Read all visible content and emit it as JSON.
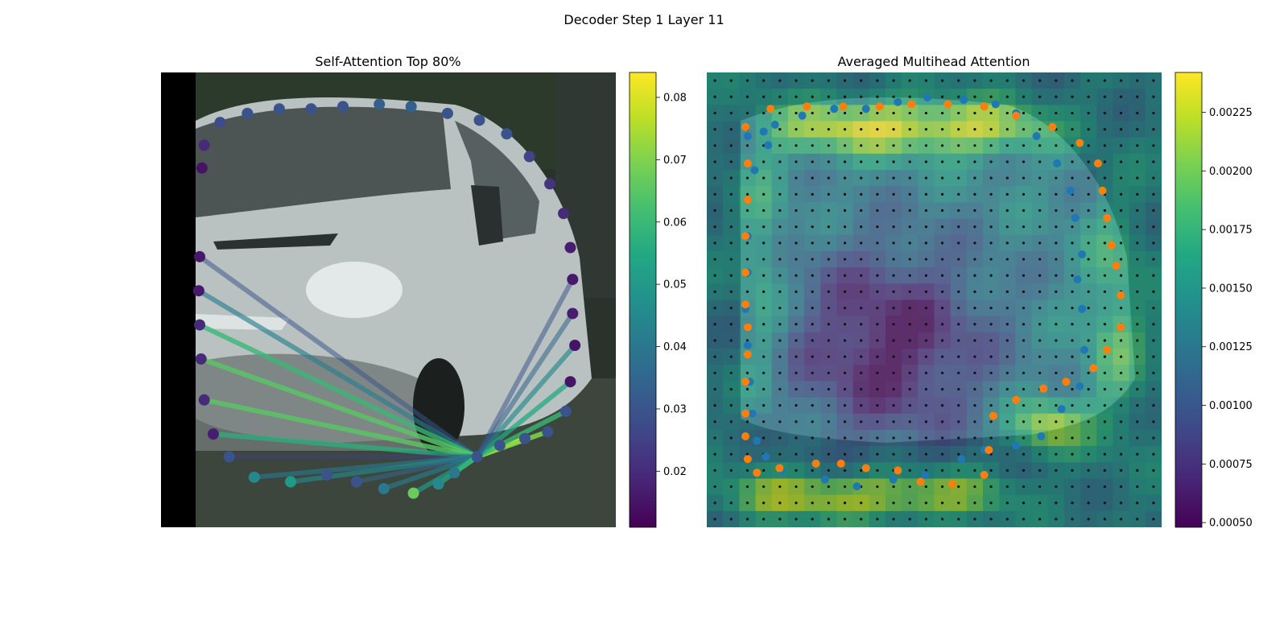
{
  "figure": {
    "suptitle": "Decoder Step 1 Layer 11"
  },
  "colors": {
    "viridis": [
      "#440154",
      "#482475",
      "#414487",
      "#355f8d",
      "#2a788e",
      "#21918c",
      "#22a884",
      "#44bf70",
      "#7ad151",
      "#bddf26",
      "#fde725"
    ],
    "points_blue": "#1f77b4",
    "points_orange": "#ff7f0e",
    "grid_dots": "#111111"
  },
  "chart_data": [
    {
      "type": "scatter",
      "title": "Self-Attention Top 80%",
      "description_source": "polygon vertices colored by attention weight; lines from query vertex to top-80% attended vertices",
      "colorbar": {
        "min": 0.011,
        "max": 0.084,
        "ticks": [
          "0.02",
          "0.03",
          "0.04",
          "0.05",
          "0.06",
          "0.07",
          "0.08"
        ],
        "tick_values": [
          0.02,
          0.03,
          0.04,
          0.05,
          0.06,
          0.07,
          0.08
        ]
      },
      "query_vertex": 24,
      "vertices": [
        [
          0.09,
          0.21,
          0.015
        ],
        [
          0.095,
          0.16,
          0.02
        ],
        [
          0.13,
          0.11,
          0.028
        ],
        [
          0.19,
          0.09,
          0.03
        ],
        [
          0.26,
          0.08,
          0.03
        ],
        [
          0.33,
          0.08,
          0.029
        ],
        [
          0.4,
          0.075,
          0.03
        ],
        [
          0.48,
          0.07,
          0.033
        ],
        [
          0.55,
          0.075,
          0.033
        ],
        [
          0.63,
          0.09,
          0.03
        ],
        [
          0.7,
          0.105,
          0.03
        ],
        [
          0.76,
          0.135,
          0.03
        ],
        [
          0.81,
          0.185,
          0.026
        ],
        [
          0.855,
          0.245,
          0.022
        ],
        [
          0.885,
          0.31,
          0.02
        ],
        [
          0.9,
          0.385,
          0.017
        ],
        [
          0.905,
          0.455,
          0.016
        ],
        [
          0.905,
          0.53,
          0.017
        ],
        [
          0.91,
          0.6,
          0.015
        ],
        [
          0.9,
          0.68,
          0.015
        ],
        [
          0.89,
          0.745,
          0.03
        ],
        [
          0.85,
          0.79,
          0.03
        ],
        [
          0.8,
          0.805,
          0.03
        ],
        [
          0.745,
          0.82,
          0.03
        ],
        [
          0.695,
          0.845,
          0.03
        ],
        [
          0.645,
          0.88,
          0.04
        ],
        [
          0.61,
          0.905,
          0.045
        ],
        [
          0.555,
          0.925,
          0.067
        ],
        [
          0.49,
          0.915,
          0.04
        ],
        [
          0.43,
          0.9,
          0.03
        ],
        [
          0.365,
          0.885,
          0.03
        ],
        [
          0.285,
          0.9,
          0.05
        ],
        [
          0.205,
          0.89,
          0.045
        ],
        [
          0.15,
          0.845,
          0.03
        ],
        [
          0.115,
          0.795,
          0.017
        ],
        [
          0.095,
          0.72,
          0.02
        ],
        [
          0.088,
          0.63,
          0.02
        ],
        [
          0.085,
          0.555,
          0.02
        ],
        [
          0.083,
          0.48,
          0.016
        ],
        [
          0.085,
          0.405,
          0.016
        ]
      ],
      "lines": [
        [
          39,
          0.03
        ],
        [
          38,
          0.042
        ],
        [
          37,
          0.06
        ],
        [
          36,
          0.065
        ],
        [
          35,
          0.065
        ],
        [
          34,
          0.057
        ],
        [
          33,
          0.025
        ],
        [
          32,
          0.04
        ],
        [
          31,
          0.045
        ],
        [
          29,
          0.035
        ],
        [
          28,
          0.042
        ],
        [
          27,
          0.05
        ],
        [
          26,
          0.055
        ],
        [
          25,
          0.06
        ],
        [
          23,
          0.08
        ],
        [
          22,
          0.083
        ],
        [
          21,
          0.07
        ],
        [
          20,
          0.06
        ],
        [
          19,
          0.055
        ],
        [
          18,
          0.045
        ],
        [
          17,
          0.035
        ],
        [
          16,
          0.03
        ]
      ]
    },
    {
      "type": "heatmap",
      "title": "Averaged Multihead Attention",
      "colorbar": {
        "min": 0.00048,
        "max": 0.00242,
        "ticks": [
          "0.00050",
          "0.00075",
          "0.00100",
          "0.00125",
          "0.00150",
          "0.00175",
          "0.00200",
          "0.00225"
        ],
        "tick_values": [
          0.0005,
          0.00075,
          0.001,
          0.00125,
          0.0015,
          0.00175,
          0.002,
          0.00225
        ]
      },
      "grid": {
        "rows": 28,
        "cols": 28
      },
      "series": [
        {
          "color_key": "points_blue",
          "points": [
            [
              0.09,
              0.14
            ],
            [
              0.135,
              0.16
            ],
            [
              0.105,
              0.215
            ],
            [
              0.09,
              0.28
            ],
            [
              0.09,
              0.36
            ],
            [
              0.09,
              0.44
            ],
            [
              0.085,
              0.52
            ],
            [
              0.09,
              0.6
            ],
            [
              0.095,
              0.68
            ],
            [
              0.1,
              0.75
            ],
            [
              0.11,
              0.81
            ],
            [
              0.13,
              0.845
            ],
            [
              0.165,
              0.875
            ],
            [
              0.26,
              0.895
            ],
            [
              0.33,
              0.91
            ],
            [
              0.41,
              0.895
            ],
            [
              0.48,
              0.885
            ],
            [
              0.56,
              0.85
            ],
            [
              0.61,
              0.83
            ],
            [
              0.68,
              0.82
            ],
            [
              0.735,
              0.8
            ],
            [
              0.78,
              0.74
            ],
            [
              0.82,
              0.69
            ],
            [
              0.83,
              0.61
            ],
            [
              0.825,
              0.52
            ],
            [
              0.815,
              0.455
            ],
            [
              0.825,
              0.4
            ],
            [
              0.81,
              0.32
            ],
            [
              0.8,
              0.26
            ],
            [
              0.77,
              0.2
            ],
            [
              0.725,
              0.14
            ],
            [
              0.68,
              0.09
            ],
            [
              0.635,
              0.07
            ],
            [
              0.565,
              0.06
            ],
            [
              0.485,
              0.055
            ],
            [
              0.42,
              0.065
            ],
            [
              0.35,
              0.08
            ],
            [
              0.28,
              0.08
            ],
            [
              0.21,
              0.095
            ],
            [
              0.15,
              0.115
            ],
            [
              0.125,
              0.13
            ]
          ]
        },
        {
          "color_key": "points_orange",
          "points": [
            [
              0.14,
              0.08
            ],
            [
              0.22,
              0.075
            ],
            [
              0.3,
              0.075
            ],
            [
              0.38,
              0.075
            ],
            [
              0.45,
              0.07
            ],
            [
              0.53,
              0.07
            ],
            [
              0.61,
              0.075
            ],
            [
              0.68,
              0.095
            ],
            [
              0.76,
              0.12
            ],
            [
              0.82,
              0.155
            ],
            [
              0.86,
              0.2
            ],
            [
              0.87,
              0.26
            ],
            [
              0.88,
              0.32
            ],
            [
              0.89,
              0.38
            ],
            [
              0.9,
              0.425
            ],
            [
              0.91,
              0.49
            ],
            [
              0.91,
              0.56
            ],
            [
              0.88,
              0.61
            ],
            [
              0.85,
              0.65
            ],
            [
              0.79,
              0.68
            ],
            [
              0.74,
              0.695
            ],
            [
              0.68,
              0.72
            ],
            [
              0.63,
              0.755
            ],
            [
              0.62,
              0.83
            ],
            [
              0.61,
              0.885
            ],
            [
              0.54,
              0.905
            ],
            [
              0.47,
              0.9
            ],
            [
              0.42,
              0.875
            ],
            [
              0.35,
              0.87
            ],
            [
              0.295,
              0.86
            ],
            [
              0.24,
              0.86
            ],
            [
              0.16,
              0.87
            ],
            [
              0.11,
              0.88
            ],
            [
              0.09,
              0.85
            ],
            [
              0.085,
              0.8
            ],
            [
              0.085,
              0.75
            ],
            [
              0.085,
              0.68
            ],
            [
              0.09,
              0.62
            ],
            [
              0.09,
              0.56
            ],
            [
              0.085,
              0.51
            ],
            [
              0.085,
              0.44
            ],
            [
              0.085,
              0.36
            ],
            [
              0.09,
              0.28
            ],
            [
              0.09,
              0.2
            ],
            [
              0.085,
              0.12
            ]
          ]
        }
      ]
    }
  ]
}
